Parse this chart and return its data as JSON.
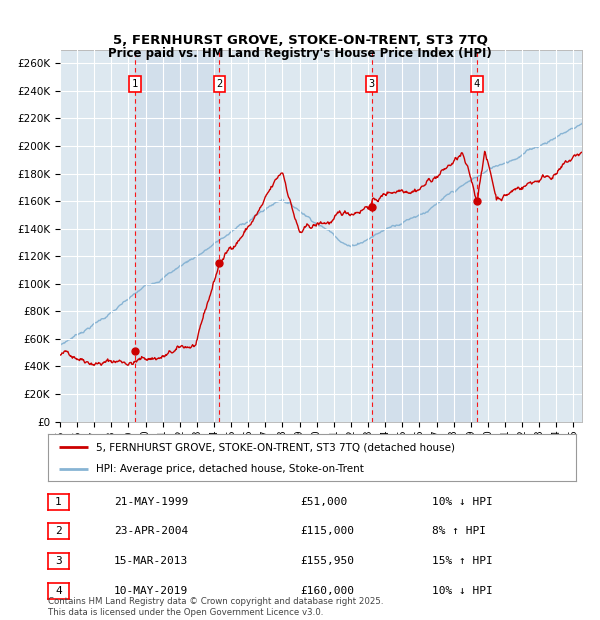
{
  "title": "5, FERNHURST GROVE, STOKE-ON-TRENT, ST3 7TQ",
  "subtitle": "Price paid vs. HM Land Registry's House Price Index (HPI)",
  "ylim": [
    0,
    270000
  ],
  "yticks": [
    0,
    20000,
    40000,
    60000,
    80000,
    100000,
    120000,
    140000,
    160000,
    180000,
    200000,
    220000,
    240000,
    260000
  ],
  "background_color": "#ffffff",
  "plot_bg_color": "#dde8f0",
  "grid_color": "#ffffff",
  "hpi_color": "#88b4d4",
  "price_color": "#cc0000",
  "sale_dates": [
    1999.38,
    2004.31,
    2013.21,
    2019.36
  ],
  "sale_prices": [
    51000,
    115000,
    155950,
    160000
  ],
  "sale_labels": [
    "1",
    "2",
    "3",
    "4"
  ],
  "legend_entries": [
    "5, FERNHURST GROVE, STOKE-ON-TRENT, ST3 7TQ (detached house)",
    "HPI: Average price, detached house, Stoke-on-Trent"
  ],
  "table_rows": [
    [
      "1",
      "21-MAY-1999",
      "£51,000",
      "10% ↓ HPI"
    ],
    [
      "2",
      "23-APR-2004",
      "£115,000",
      "8% ↑ HPI"
    ],
    [
      "3",
      "15-MAR-2013",
      "£155,950",
      "15% ↑ HPI"
    ],
    [
      "4",
      "10-MAY-2019",
      "£160,000",
      "10% ↓ HPI"
    ]
  ],
  "footnote": "Contains HM Land Registry data © Crown copyright and database right 2025.\nThis data is licensed under the Open Government Licence v3.0.",
  "xmin": 1995,
  "xmax": 2025.5
}
